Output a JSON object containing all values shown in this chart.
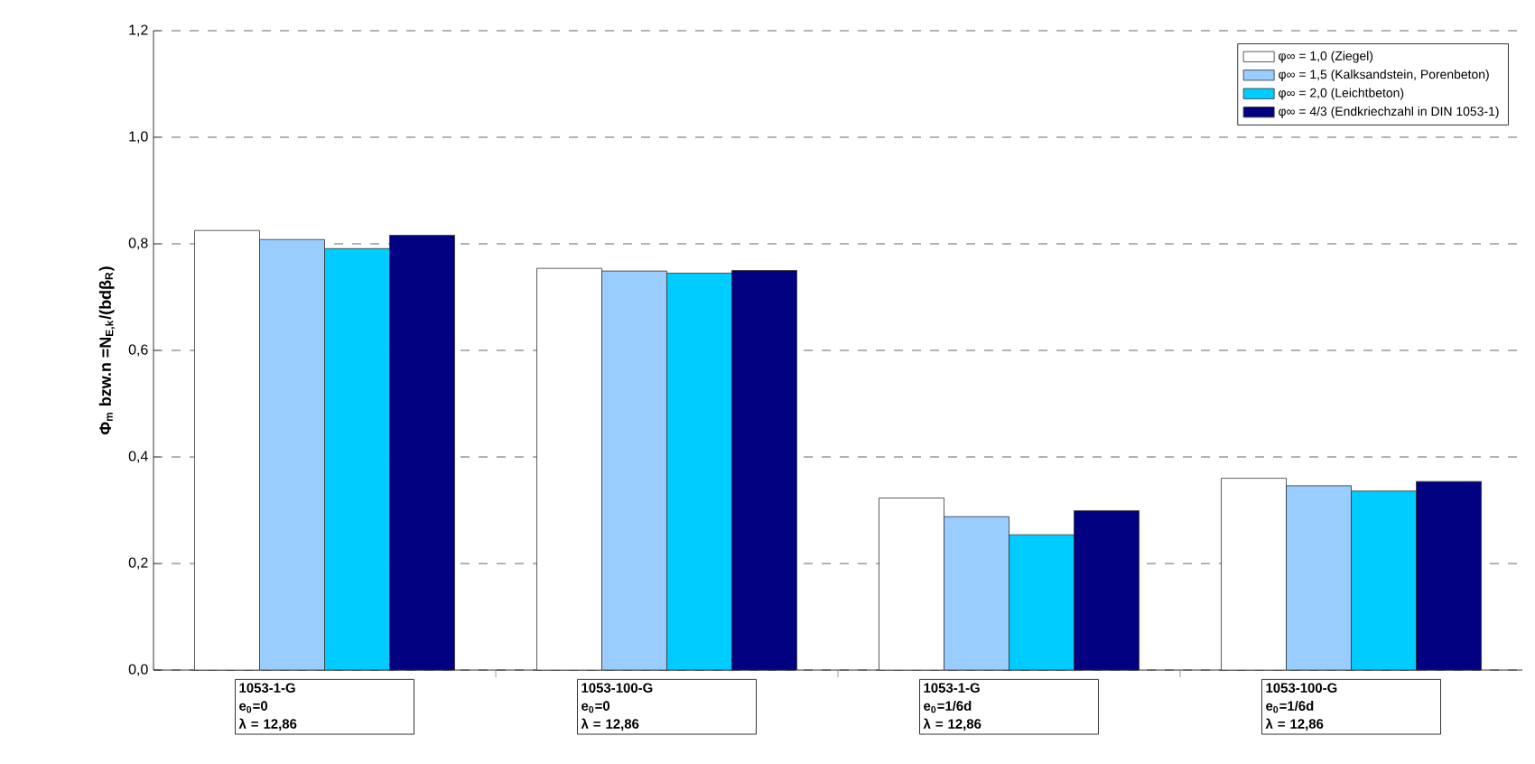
{
  "chart_data": {
    "type": "bar",
    "ylabel": "Φ$_{m}$ bzw.n =N$_{E,k}$/(bdβ$_{R}$)",
    "categories": [
      "1053-1-G\ne$_{0}$=0\nλ = 12,86",
      "1053-100-G\ne$_{0}$=0\nλ = 12,86",
      "1053-1-G\ne$_{0}$=1/6d\nλ = 12,86",
      "1053-100-G\ne$_{0}$=1/6d\nλ = 12,86"
    ],
    "series": [
      {
        "name": "φ∞ = 1,0 (Ziegel)",
        "color": "#ffffff",
        "values": [
          0.825,
          0.754,
          0.323,
          0.36
        ]
      },
      {
        "name": "φ∞ = 1,5 (Kalksandstein, Porenbeton)",
        "color": "#99ccff",
        "values": [
          0.808,
          0.749,
          0.288,
          0.346
        ]
      },
      {
        "name": "φ∞ = 2,0 (Leichtbeton)",
        "color": "#00ccff",
        "values": [
          0.791,
          0.745,
          0.254,
          0.336
        ]
      },
      {
        "name": "φ∞ = 4/3 (Endkriechzahl in DIN 1053-1)",
        "color": "#000080",
        "values": [
          0.816,
          0.75,
          0.299,
          0.354
        ]
      }
    ],
    "ylim": [
      0,
      1.2
    ],
    "yticks": [
      {
        "value": 0,
        "label": "0,0"
      },
      {
        "value": 0.2,
        "label": "0,2"
      },
      {
        "value": 0.4,
        "label": "0,4"
      },
      {
        "value": 0.6,
        "label": "0,6"
      },
      {
        "value": 0.8,
        "label": "0,8"
      },
      {
        "value": 1.0,
        "label": "1,0"
      },
      {
        "value": 1.2,
        "label": "1,2"
      }
    ],
    "grid": "y",
    "legend": "top right"
  }
}
